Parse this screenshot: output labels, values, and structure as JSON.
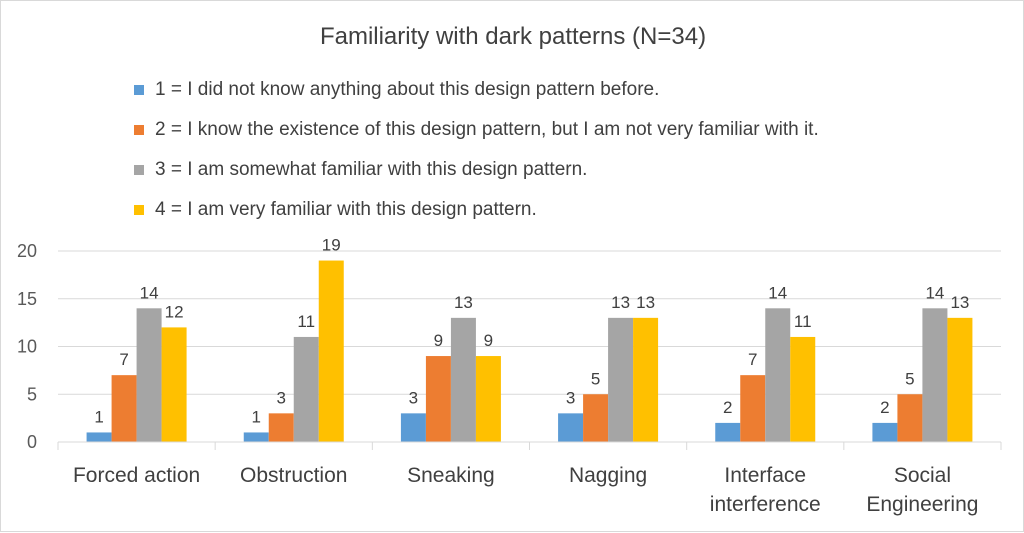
{
  "chart_data": {
    "type": "bar",
    "title": "Familiarity with dark patterns (N=34)",
    "xlabel": "",
    "ylabel": "",
    "ylim": [
      0,
      20
    ],
    "yticks": [
      0,
      5,
      10,
      15,
      20
    ],
    "grid": true,
    "legend_position": "top",
    "categories": [
      [
        "Forced action"
      ],
      [
        "Obstruction"
      ],
      [
        "Sneaking"
      ],
      [
        "Nagging"
      ],
      [
        "Interface",
        "interference"
      ],
      [
        "Social",
        "Engineering"
      ]
    ],
    "series": [
      {
        "name": "1 = I did not know anything about this design pattern before.",
        "color": "#5B9BD5",
        "values": [
          1,
          1,
          3,
          3,
          2,
          2
        ]
      },
      {
        "name": "2 = I know the existence of this design pattern, but I am not very familiar with it.",
        "color": "#ED7D31",
        "values": [
          7,
          3,
          9,
          5,
          7,
          5
        ]
      },
      {
        "name": "3 = I am somewhat familiar with this design pattern.",
        "color": "#A5A5A5",
        "values": [
          14,
          11,
          13,
          13,
          14,
          14
        ]
      },
      {
        "name": "4 = I am very familiar with this design pattern.",
        "color": "#FFC000",
        "values": [
          12,
          19,
          9,
          13,
          11,
          13
        ]
      }
    ]
  }
}
